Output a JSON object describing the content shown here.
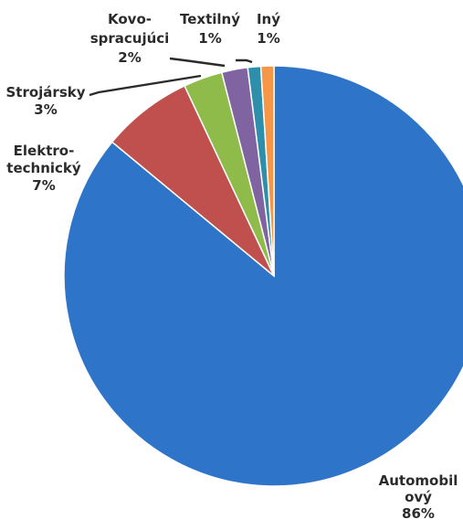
{
  "chart_data": {
    "type": "pie",
    "slices": [
      {
        "label": [
          "Automobil",
          "ový"
        ],
        "value": 86,
        "value_label": "86%",
        "color": "#2e75c9"
      },
      {
        "label": [
          "Elektro-",
          "technický"
        ],
        "value": 7,
        "value_label": "7%",
        "color": "#c0504d"
      },
      {
        "label": [
          "Strojársky"
        ],
        "value": 3,
        "value_label": "3%",
        "color": "#8ebb49"
      },
      {
        "label": [
          "Kovo-",
          "spracujúci"
        ],
        "value": 2,
        "value_label": "2%",
        "color": "#8064a2"
      },
      {
        "label": [
          "Textilný"
        ],
        "value": 1,
        "value_label": "1%",
        "color": "#2e8fab"
      },
      {
        "label": [
          "Iný"
        ],
        "value": 1,
        "value_label": "1%",
        "color": "#f79646"
      }
    ],
    "start_angle_deg": 0,
    "direction": "clockwise",
    "legend": "none",
    "data_labels": "outside"
  }
}
